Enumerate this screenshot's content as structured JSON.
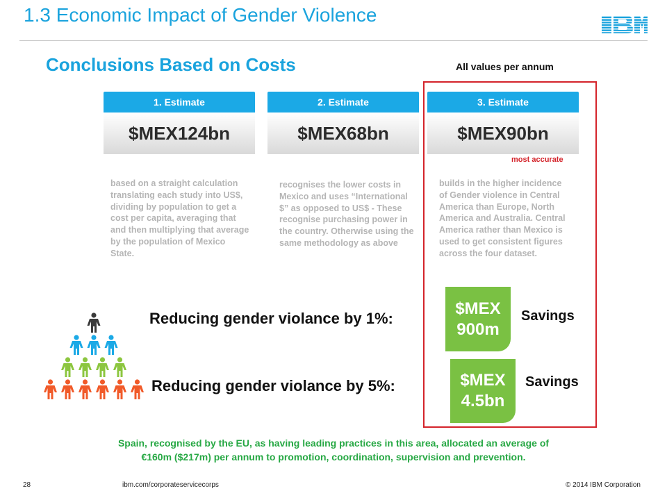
{
  "header": {
    "title": "1.3 Economic Impact of Gender Violence",
    "logo_text": "IBM"
  },
  "subtitle": "Conclusions Based on Costs",
  "note_per_annum": "All values per annum",
  "estimates": [
    {
      "label": "1. Estimate",
      "value": "$MEX124bn",
      "description": "based on a straight calculation translating each study into US$, dividing by population to get a cost per capita, averaging that and then multiplying that average by the population of Mexico State."
    },
    {
      "label": "2. Estimate",
      "value": "$MEX68bn",
      "description": "recognises the lower costs in Mexico and uses “International $” as opposed to US$ - These recognise purchasing power in the country. Otherwise using the same methodology as above"
    },
    {
      "label": "3. Estimate",
      "value": "$MEX90bn",
      "tag": "most accurate",
      "description": "builds in the higher incidence of Gender violence in Central America than Europe, North America and Australia. Central America rather than Mexico is used to get consistent figures across the four dataset."
    }
  ],
  "scenarios": [
    {
      "label": "Reducing gender violance by 1%:",
      "amount_line1": "$MEX",
      "amount_line2": "900m",
      "savings_label": "Savings"
    },
    {
      "label": "Reducing gender violance by 5%:",
      "amount_line1": "$MEX",
      "amount_line2": "4.5bn",
      "savings_label": "Savings"
    }
  ],
  "spain_note_line1": "Spain, recognised by the EU, as having leading practices in this area, allocated an average of",
  "spain_note_line2": "€160m ($217m) per annum to promotion, coordination, supervision and prevention.",
  "footer": {
    "page_number": "28",
    "url": "ibm.com/corporateservicecorps",
    "copyright": "© 2014 IBM  Corporation"
  },
  "colors": {
    "title_blue": "#1aa3dd",
    "estimate_header": "#1ba9e6",
    "highlight_red": "#d4232a",
    "savings_green": "#7ac143",
    "note_green": "#27a844",
    "pyramid_rows": [
      "#3a3a3a",
      "#1ba9e6",
      "#8cc63f",
      "#f15a29"
    ]
  },
  "icons": {
    "logo": "ibm-striped-logo",
    "person": "person-figure-icon"
  },
  "pyramid_counts": [
    1,
    3,
    4,
    6
  ]
}
